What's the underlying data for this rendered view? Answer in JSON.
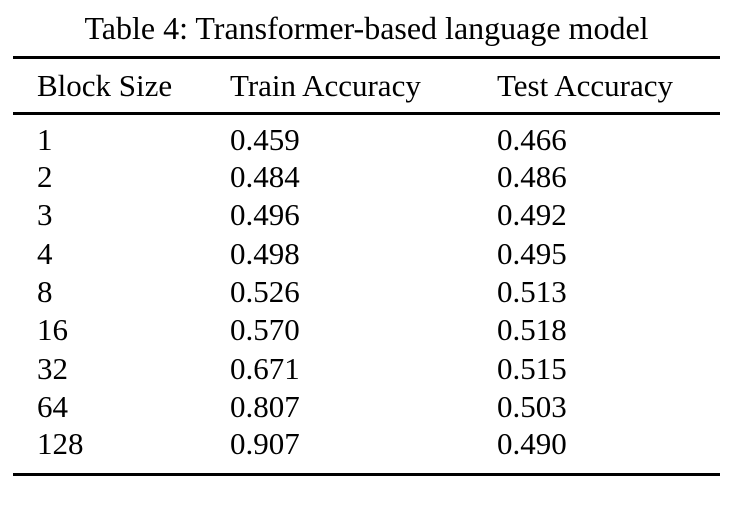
{
  "table": {
    "caption": "Table 4: Transformer-based language model",
    "columns": [
      "Block Size",
      "Train Accuracy",
      "Test Accuracy"
    ],
    "rows": [
      [
        "1",
        "0.459",
        "0.466"
      ],
      [
        "2",
        "0.484",
        "0.486"
      ],
      [
        "3",
        "0.496",
        "0.492"
      ],
      [
        "4",
        "0.498",
        "0.495"
      ],
      [
        "8",
        "0.526",
        "0.513"
      ],
      [
        "16",
        "0.570",
        "0.518"
      ],
      [
        "32",
        "0.671",
        "0.515"
      ],
      [
        "64",
        "0.807",
        "0.503"
      ],
      [
        "128",
        "0.907",
        "0.490"
      ]
    ]
  },
  "chart_data": {
    "type": "table",
    "title": "Table 4: Transformer-based language model",
    "categories": [
      1,
      2,
      3,
      4,
      8,
      16,
      32,
      64,
      128
    ],
    "series": [
      {
        "name": "Train Accuracy",
        "values": [
          0.459,
          0.484,
          0.496,
          0.498,
          0.526,
          0.57,
          0.671,
          0.807,
          0.907
        ]
      },
      {
        "name": "Test Accuracy",
        "values": [
          0.466,
          0.486,
          0.492,
          0.495,
          0.513,
          0.518,
          0.515,
          0.503,
          0.49
        ]
      }
    ]
  },
  "colors": {
    "text": "#000000",
    "background": "#ffffff",
    "rule": "#000000"
  }
}
